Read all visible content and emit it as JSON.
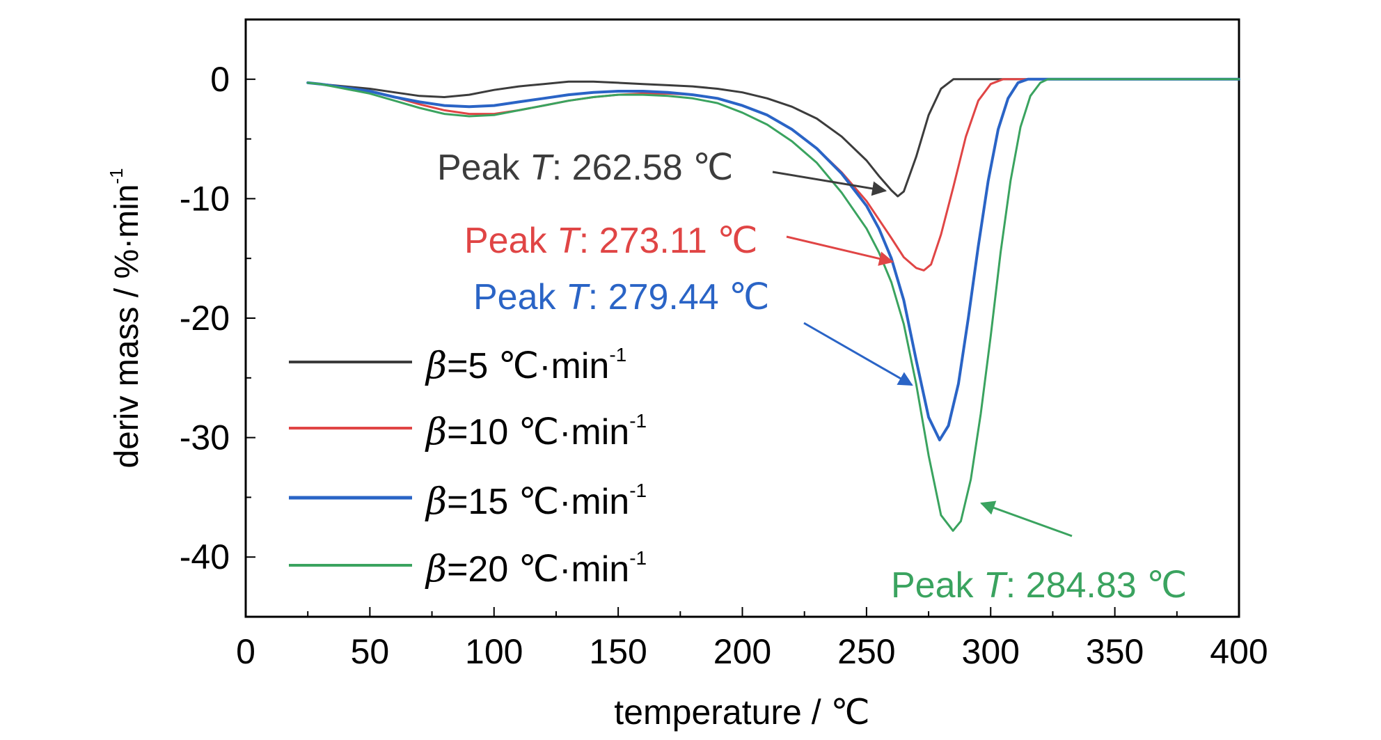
{
  "chart_data": {
    "type": "line",
    "xlabel": "temperature / ℃",
    "ylabel_main": "deriv mass / %·min",
    "ylabel_sup": "-1",
    "xlim": [
      0,
      400
    ],
    "ylim": [
      -45,
      5
    ],
    "xticks": [
      0,
      50,
      100,
      150,
      200,
      250,
      300,
      350,
      400
    ],
    "yticks": [
      0,
      -10,
      -20,
      -30,
      -40
    ],
    "xtick_labels": [
      "0",
      "50",
      "100",
      "150",
      "200",
      "250",
      "300",
      "350",
      "400"
    ],
    "ytick_labels": [
      "0",
      "-10",
      "-20",
      "-30",
      "-40"
    ],
    "grid": false,
    "legend_position": "lower-left",
    "series": [
      {
        "name_beta": "β",
        "name_rest": "=5  ℃·min",
        "name_sup": "-1",
        "color": "#3c3c3c",
        "points": [
          [
            25,
            -0.3
          ],
          [
            30,
            -0.4
          ],
          [
            40,
            -0.6
          ],
          [
            50,
            -0.8
          ],
          [
            60,
            -1.1
          ],
          [
            70,
            -1.4
          ],
          [
            80,
            -1.5
          ],
          [
            90,
            -1.3
          ],
          [
            100,
            -0.9
          ],
          [
            110,
            -0.6
          ],
          [
            120,
            -0.4
          ],
          [
            130,
            -0.2
          ],
          [
            140,
            -0.2
          ],
          [
            150,
            -0.3
          ],
          [
            160,
            -0.4
          ],
          [
            170,
            -0.5
          ],
          [
            180,
            -0.6
          ],
          [
            190,
            -0.8
          ],
          [
            200,
            -1.1
          ],
          [
            210,
            -1.6
          ],
          [
            220,
            -2.3
          ],
          [
            230,
            -3.3
          ],
          [
            240,
            -4.8
          ],
          [
            250,
            -6.8
          ],
          [
            255,
            -8.1
          ],
          [
            260,
            -9.3
          ],
          [
            262.58,
            -9.8
          ],
          [
            265,
            -9.4
          ],
          [
            270,
            -6.5
          ],
          [
            275,
            -3.0
          ],
          [
            280,
            -0.8
          ],
          [
            285,
            0
          ],
          [
            300,
            0
          ],
          [
            350,
            0
          ],
          [
            400,
            0
          ]
        ]
      },
      {
        "name_beta": "β",
        "name_rest": "=10  ℃·min",
        "name_sup": "-1",
        "color": "#e04545",
        "points": [
          [
            25,
            -0.3
          ],
          [
            30,
            -0.4
          ],
          [
            40,
            -0.7
          ],
          [
            50,
            -1.0
          ],
          [
            60,
            -1.5
          ],
          [
            70,
            -2.1
          ],
          [
            80,
            -2.6
          ],
          [
            90,
            -2.9
          ],
          [
            100,
            -2.9
          ],
          [
            110,
            -2.6
          ],
          [
            120,
            -2.2
          ],
          [
            130,
            -1.8
          ],
          [
            140,
            -1.5
          ],
          [
            150,
            -1.3
          ],
          [
            160,
            -1.2
          ],
          [
            170,
            -1.2
          ],
          [
            180,
            -1.3
          ],
          [
            190,
            -1.6
          ],
          [
            200,
            -2.2
          ],
          [
            210,
            -3.0
          ],
          [
            220,
            -4.2
          ],
          [
            230,
            -5.8
          ],
          [
            240,
            -7.8
          ],
          [
            250,
            -10.2
          ],
          [
            260,
            -13.3
          ],
          [
            265,
            -14.9
          ],
          [
            270,
            -15.8
          ],
          [
            273.11,
            -16.0
          ],
          [
            276,
            -15.5
          ],
          [
            280,
            -13.0
          ],
          [
            285,
            -9.0
          ],
          [
            290,
            -4.8
          ],
          [
            295,
            -1.8
          ],
          [
            300,
            -0.4
          ],
          [
            305,
            0
          ],
          [
            350,
            0
          ],
          [
            400,
            0
          ]
        ]
      },
      {
        "name_beta": "β",
        "name_rest": "=15  ℃·min",
        "name_sup": "-1",
        "color": "#2a64c6",
        "points": [
          [
            25,
            -0.3
          ],
          [
            30,
            -0.4
          ],
          [
            40,
            -0.7
          ],
          [
            50,
            -1.0
          ],
          [
            60,
            -1.5
          ],
          [
            70,
            -1.9
          ],
          [
            80,
            -2.2
          ],
          [
            90,
            -2.3
          ],
          [
            100,
            -2.2
          ],
          [
            110,
            -1.9
          ],
          [
            120,
            -1.6
          ],
          [
            130,
            -1.3
          ],
          [
            140,
            -1.1
          ],
          [
            150,
            -1.0
          ],
          [
            160,
            -1.0
          ],
          [
            170,
            -1.1
          ],
          [
            180,
            -1.3
          ],
          [
            190,
            -1.6
          ],
          [
            200,
            -2.2
          ],
          [
            210,
            -3.0
          ],
          [
            220,
            -4.2
          ],
          [
            230,
            -5.8
          ],
          [
            240,
            -7.9
          ],
          [
            250,
            -10.6
          ],
          [
            255,
            -12.5
          ],
          [
            260,
            -15.0
          ],
          [
            265,
            -18.5
          ],
          [
            270,
            -23.5
          ],
          [
            275,
            -28.3
          ],
          [
            279.44,
            -30.2
          ],
          [
            283,
            -29.0
          ],
          [
            287,
            -25.5
          ],
          [
            291,
            -20.0
          ],
          [
            295,
            -14.0
          ],
          [
            299,
            -8.5
          ],
          [
            303,
            -4.2
          ],
          [
            307,
            -1.6
          ],
          [
            311,
            -0.3
          ],
          [
            315,
            0
          ],
          [
            350,
            0
          ],
          [
            400,
            0
          ]
        ]
      },
      {
        "name_beta": "β",
        "name_rest": "=20  ℃·min",
        "name_sup": "-1",
        "color": "#3aa35f",
        "points": [
          [
            25,
            -0.3
          ],
          [
            30,
            -0.4
          ],
          [
            40,
            -0.8
          ],
          [
            50,
            -1.2
          ],
          [
            60,
            -1.8
          ],
          [
            70,
            -2.4
          ],
          [
            80,
            -2.9
          ],
          [
            90,
            -3.1
          ],
          [
            100,
            -3.0
          ],
          [
            110,
            -2.6
          ],
          [
            120,
            -2.2
          ],
          [
            130,
            -1.8
          ],
          [
            140,
            -1.5
          ],
          [
            150,
            -1.3
          ],
          [
            160,
            -1.3
          ],
          [
            170,
            -1.4
          ],
          [
            180,
            -1.6
          ],
          [
            190,
            -2.0
          ],
          [
            200,
            -2.8
          ],
          [
            210,
            -3.8
          ],
          [
            220,
            -5.2
          ],
          [
            230,
            -7.0
          ],
          [
            240,
            -9.5
          ],
          [
            250,
            -12.5
          ],
          [
            255,
            -14.5
          ],
          [
            260,
            -17.0
          ],
          [
            265,
            -20.5
          ],
          [
            270,
            -25.5
          ],
          [
            275,
            -31.5
          ],
          [
            280,
            -36.5
          ],
          [
            284.83,
            -37.8
          ],
          [
            288,
            -37.0
          ],
          [
            292,
            -33.5
          ],
          [
            296,
            -28.0
          ],
          [
            300,
            -21.5
          ],
          [
            304,
            -14.5
          ],
          [
            308,
            -8.5
          ],
          [
            312,
            -4.0
          ],
          [
            316,
            -1.4
          ],
          [
            320,
            -0.3
          ],
          [
            323,
            0
          ],
          [
            350,
            0
          ],
          [
            400,
            0
          ]
        ]
      }
    ],
    "annotations": [
      {
        "prefix": "Peak ",
        "italic": "T",
        "suffix": ": 262.58 ℃",
        "peak_x": 262.58,
        "peak_y": -9.8,
        "color": "#3c3c3c"
      },
      {
        "prefix": "Peak ",
        "italic": "T",
        "suffix": ": 273.11 ℃",
        "peak_x": 273.11,
        "peak_y": -16.0,
        "color": "#e04545"
      },
      {
        "prefix": "Peak ",
        "italic": "T",
        "suffix": ": 279.44 ℃",
        "peak_x": 279.44,
        "peak_y": -30.2,
        "color": "#2a64c6"
      },
      {
        "prefix": "Peak ",
        "italic": "T",
        "suffix": ": 284.83 ℃",
        "peak_x": 284.83,
        "peak_y": -37.8,
        "color": "#3aa35f"
      }
    ]
  }
}
